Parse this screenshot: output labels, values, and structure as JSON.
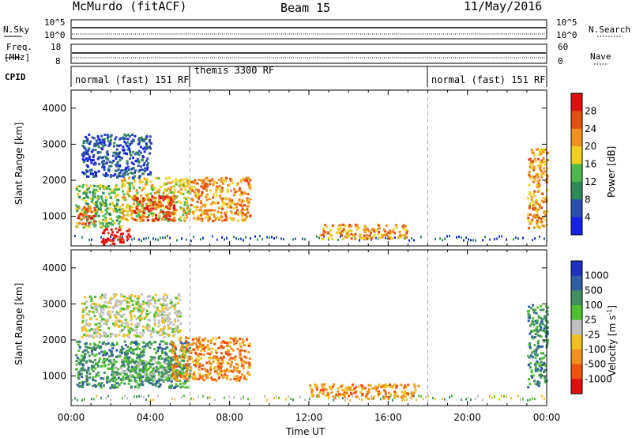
{
  "header": {
    "station": "McMurdo (fitACF)",
    "beam": "Beam 15",
    "date": "11/May/2016"
  },
  "top_panels": {
    "nsky_label": "N.Sky",
    "nsky_left_top": "10^5",
    "nsky_left_bottom": "10^0",
    "nsearch_label": "N.Search",
    "nsearch_right_top": "10^5",
    "nsearch_right_bottom": "10^0",
    "freq_label": "Freq.",
    "freq_unit": "[MHz]",
    "freq_left_top": "18",
    "freq_left_bottom": "8",
    "nave_label": "Nave",
    "nave_right_top": "60",
    "nave_right_bottom": "0",
    "cpid_label": "CPID"
  },
  "cpid_segments": [
    {
      "label": "normal (fast) 151 RF",
      "start_hour": 0,
      "end_hour": 6
    },
    {
      "label": "themis 3300 RF",
      "start_hour": 6,
      "end_hour": 18
    },
    {
      "label": "normal (fast) 151 RF",
      "start_hour": 18,
      "end_hour": 24
    }
  ],
  "colors": {
    "power_scale": [
      "#1520e8",
      "#2a4fb0",
      "#2f8a5a",
      "#4db84d",
      "#f0d020",
      "#f09020",
      "#e05010",
      "#e01010"
    ],
    "velocity_scale": [
      "#e01010",
      "#f05010",
      "#f09020",
      "#f0c020",
      "#c0c0c0",
      "#50c030",
      "#3f8f5f",
      "#2f5fa0",
      "#2030c0"
    ]
  },
  "chart_data": [
    {
      "type": "heatmap",
      "title": "Power",
      "ylabel": "Slant Range [km]",
      "yticks": [
        "1000",
        "2000",
        "3000",
        "4000"
      ],
      "ylim": [
        180,
        4500
      ],
      "xlim_hours": [
        0,
        24
      ],
      "colorbar": {
        "label": "Power [dB]",
        "ticks": [
          "4",
          "8",
          "12",
          "16",
          "20",
          "24",
          "28"
        ],
        "range": [
          0,
          32
        ]
      },
      "patches": [
        {
          "start_hour": 0.2,
          "end_hour": 2.5,
          "min_km": 700,
          "max_km": 1900,
          "value": 14
        },
        {
          "start_hour": 0.3,
          "end_hour": 1.2,
          "min_km": 800,
          "max_km": 1300,
          "value": 26
        },
        {
          "start_hour": 2.5,
          "end_hour": 6.0,
          "min_km": 900,
          "max_km": 2100,
          "value": 18
        },
        {
          "start_hour": 3.0,
          "end_hour": 5.2,
          "min_km": 900,
          "max_km": 1600,
          "value": 27
        },
        {
          "start_hour": 6.0,
          "end_hour": 9.0,
          "min_km": 900,
          "max_km": 2100,
          "value": 20
        },
        {
          "start_hour": 0.5,
          "end_hour": 4.0,
          "min_km": 2100,
          "max_km": 3300,
          "value": 6
        },
        {
          "start_hour": 1.5,
          "end_hour": 3.0,
          "min_km": 250,
          "max_km": 700,
          "value": 28
        },
        {
          "start_hour": 12.5,
          "end_hour": 17.0,
          "min_km": 400,
          "max_km": 800,
          "value": 22
        },
        {
          "start_hour": 23.0,
          "end_hour": 24.0,
          "min_km": 700,
          "max_km": 2900,
          "value": 20
        }
      ]
    },
    {
      "type": "heatmap",
      "title": "Velocity",
      "xlabel": "Time UT",
      "ylabel": "Slant Range [km]",
      "yticks": [
        "1000",
        "2000",
        "3000",
        "4000"
      ],
      "ylim": [
        180,
        4500
      ],
      "xticks": [
        "00:00",
        "04:00",
        "08:00",
        "12:00",
        "16:00",
        "20:00",
        "00:00"
      ],
      "xlim_hours": [
        0,
        24
      ],
      "colorbar": {
        "label": "Velocity [m s",
        "label_sup": "-1",
        "label_end": "]",
        "ticks": [
          "1000",
          "500",
          "100",
          "25",
          "-25",
          "-100",
          "-500",
          "-1000"
        ]
      },
      "patches": [
        {
          "start_hour": 0.2,
          "end_hour": 6.0,
          "min_km": 700,
          "max_km": 2000,
          "value": 100
        },
        {
          "start_hour": 2.0,
          "end_hour": 5.5,
          "min_km": 900,
          "max_km": 1500,
          "value": 50
        },
        {
          "start_hour": 5.0,
          "end_hour": 9.0,
          "min_km": 900,
          "max_km": 2100,
          "value": -120
        },
        {
          "start_hour": 0.5,
          "end_hour": 5.5,
          "min_km": 2100,
          "max_km": 3300,
          "value": 10
        },
        {
          "start_hour": 12.0,
          "end_hour": 17.5,
          "min_km": 400,
          "max_km": 800,
          "value": -200
        },
        {
          "start_hour": 23.0,
          "end_hour": 24.0,
          "min_km": 700,
          "max_km": 3000,
          "value": 150
        }
      ]
    }
  ]
}
